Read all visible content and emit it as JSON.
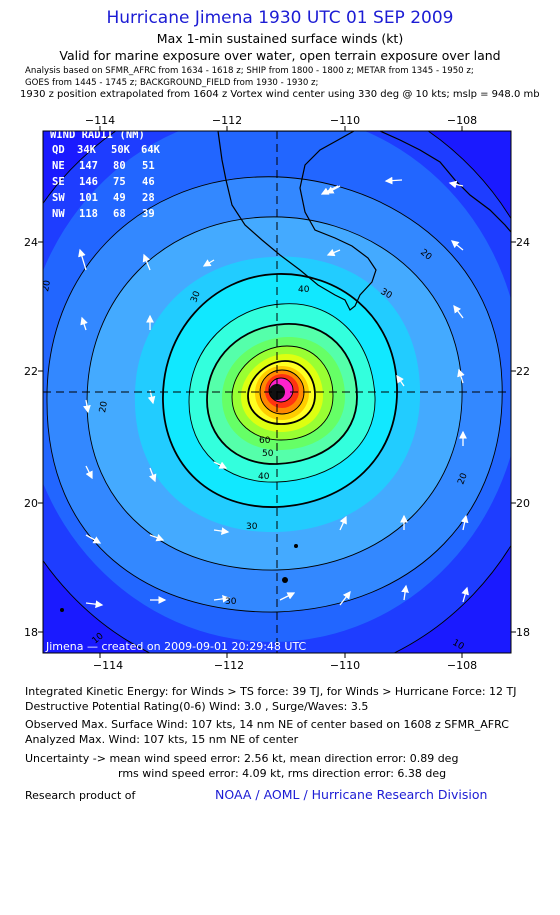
{
  "header": {
    "title": "Hurricane Jimena 1930 UTC 01 SEP 2009",
    "subtitle": "Max 1-min sustained surface winds (kt)",
    "validity": "Valid for marine exposure over water, open terrain exposure over land",
    "analysis_line1": "Analysis based on   SFMR_AFRC from 1634 - 1618 z;   SHIP from 1800 - 1800 z;   METAR from 1345 - 1950 z;",
    "analysis_line2": "GOES from 1445 - 1745 z;   BACKGROUND_FIELD from 1930 - 1930 z;",
    "position_note": "1930 z position extrapolated from 1604 z Vortex wind center using 330 deg @ 10 kts; mslp = 948.0 mb"
  },
  "axes": {
    "x_ticks": [
      "−114",
      "−112",
      "−110",
      "−108"
    ],
    "y_ticks": [
      "24",
      "22",
      "20",
      "18"
    ]
  },
  "wind_radii": {
    "title": "WIND RADII (NM)",
    "rows": [
      [
        "QD",
        "34K",
        "50K",
        "64K"
      ],
      [
        "NE",
        "147",
        "80",
        "51"
      ],
      [
        "SE",
        "146",
        "75",
        "46"
      ],
      [
        "SW",
        "101",
        "49",
        "28"
      ],
      [
        "NW",
        "118",
        "68",
        "39"
      ]
    ]
  },
  "map": {
    "storm_center": {
      "lon": -111.0,
      "lat": 21.7
    },
    "contour_labels": [
      "20",
      "20",
      "20",
      "20",
      "30",
      "30",
      "30",
      "30",
      "40",
      "40",
      "50",
      "60",
      "10",
      "10"
    ],
    "credit": "Jimena — created on 2009-09-01 20:29:48 UTC",
    "colors": {
      "deep_blue": "#1a1aff",
      "blue": "#2266ff",
      "light_blue": "#44aaff",
      "cyan": "#11e8ff",
      "aqua": "#44ffcc",
      "green": "#44ff44",
      "yellow": "#ffff22",
      "orange": "#ffaa00",
      "red": "#ff3311",
      "magenta": "#ff22cc"
    }
  },
  "footer": {
    "ike": "Integrated Kinetic Energy:  for Winds > TS force: 39 TJ,  for Winds > Hurricane Force: 12 TJ",
    "dpr": "Destructive Potential Rating(0-6)   Wind: 3.0 , Surge/Waves: 3.5",
    "observed": "Observed Max. Surface Wind: 107 kts, 14 nm NE of center based on 1608 z SFMR_AFRC",
    "analyzed": "Analyzed Max. Wind: 107 kts, 15 nm NE of center",
    "uncertainty1": "Uncertainty -> mean wind speed error: 2.56 kt,   mean direction error: 0.89 deg",
    "uncertainty2": "rms wind speed error: 4.09 kt,   rms direction error: 6.38 deg",
    "research": "Research product of",
    "org": "NOAA / AOML / Hurricane Research Division"
  }
}
